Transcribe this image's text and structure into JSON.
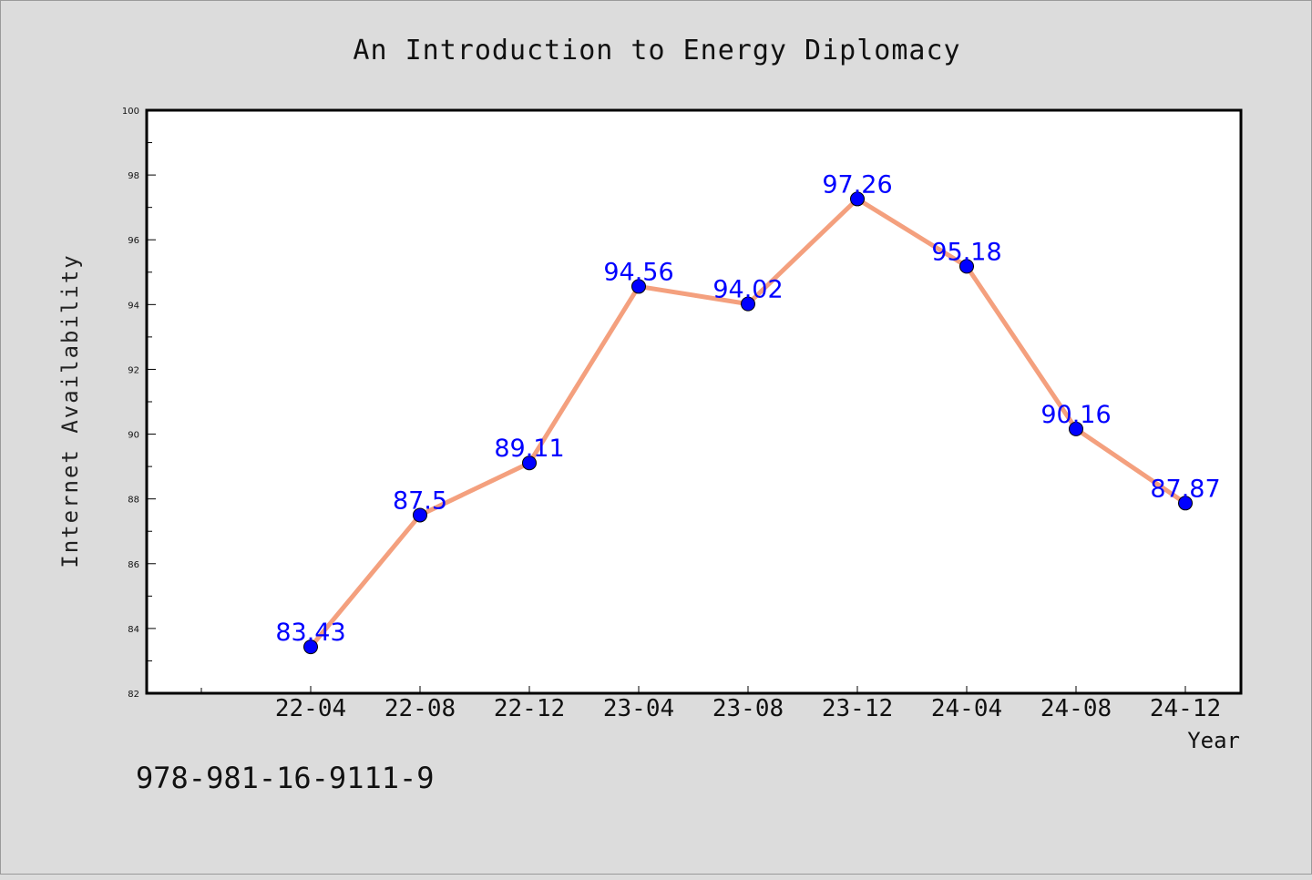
{
  "chart_data": {
    "type": "line",
    "title": "An Introduction to Energy Diplomacy",
    "xlabel": "Year",
    "ylabel": "Internet Availability",
    "categories": [
      "22-04",
      "22-08",
      "22-12",
      "23-04",
      "23-08",
      "23-12",
      "24-04",
      "24-08",
      "24-12"
    ],
    "series": [
      {
        "values": [
          83.43,
          87.5,
          89.11,
          94.56,
          94.02,
          97.26,
          95.18,
          90.16,
          87.87
        ]
      }
    ],
    "data_labels": [
      "83.43",
      "87.5",
      "89.11",
      "94.56",
      "94.02",
      "97.26",
      "95.18",
      "90.16",
      "87.87"
    ],
    "ylim": [
      82,
      100
    ],
    "yticks": [
      "82",
      "84",
      "86",
      "88",
      "90",
      "92",
      "94",
      "96",
      "98",
      "100"
    ],
    "grid": false,
    "line_color": "#f4a07e",
    "marker_color": "#0000ff",
    "label_color": "#0000ff"
  },
  "footer_text": "978-981-16-9111-9"
}
